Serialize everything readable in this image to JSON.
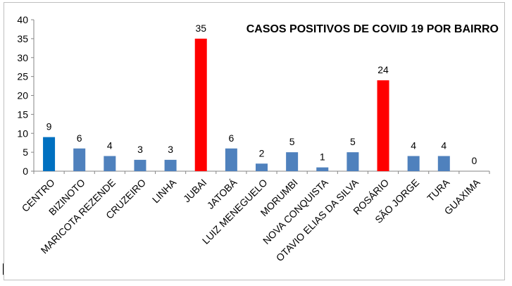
{
  "chart_data": {
    "type": "bar",
    "title": "CASOS POSITIVOS DE COVID 19 POR BAIRRO",
    "categories": [
      "CENTRO",
      "BIZINOTO",
      "MARICOTA REZENDE",
      "CRUZEIRO",
      "LINHA",
      "JUBAI",
      "JATOBÁ",
      "LUIZ MENEGUELO",
      "MORUMBI",
      "NOVA CONQUISTA",
      "OTAVIO ELIAS DA SILVA",
      "ROSÁRIO",
      "SÃO JORGE",
      "TURA",
      "GUAXIMA"
    ],
    "values": [
      9,
      6,
      4,
      3,
      3,
      35,
      6,
      2,
      5,
      1,
      5,
      24,
      4,
      4,
      0
    ],
    "bar_colors": [
      "#0070C0",
      "#4F81BD",
      "#4F81BD",
      "#4F81BD",
      "#4F81BD",
      "#FF0000",
      "#4F81BD",
      "#4F81BD",
      "#4F81BD",
      "#4F81BD",
      "#4F81BD",
      "#FF0000",
      "#4F81BD",
      "#4F81BD",
      "#4F81BD"
    ],
    "yticks": [
      "0",
      "5",
      "10",
      "15",
      "20",
      "25",
      "30",
      "35",
      "40"
    ],
    "ylim": [
      0,
      40
    ],
    "grid": false,
    "legend": "none",
    "xlabel": "",
    "ylabel": ""
  }
}
